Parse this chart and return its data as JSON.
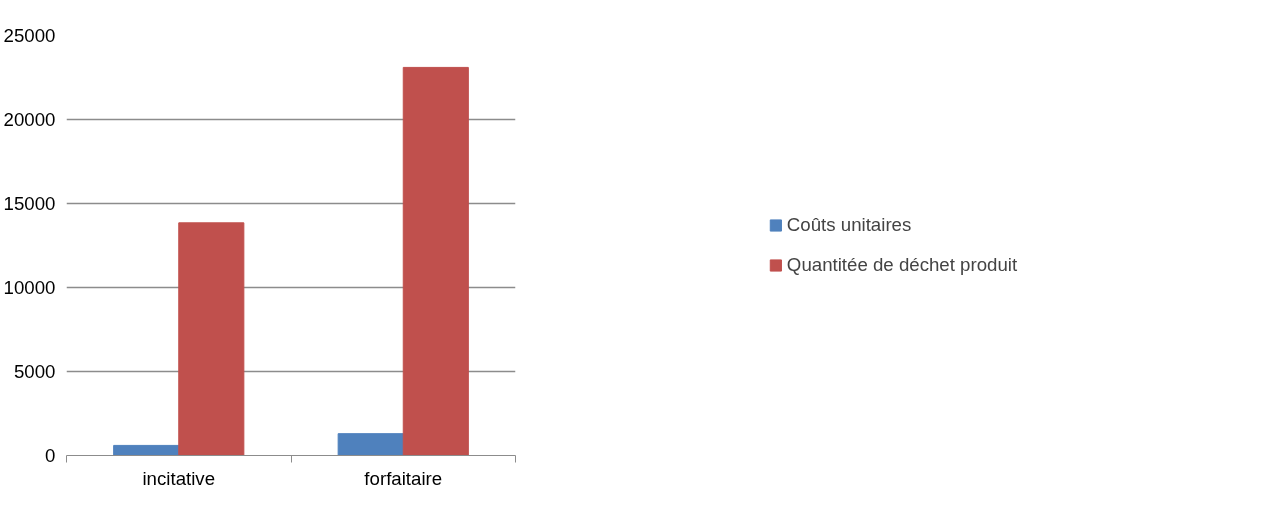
{
  "chart_data": {
    "type": "bar",
    "categories": [
      "incitative",
      "forfaitaire"
    ],
    "series": [
      {
        "name": "Coûts unitaires",
        "color": "#4f81bd",
        "values": [
          600,
          1300
        ]
      },
      {
        "name": "Quantitée de déchet produit",
        "color": "#c0504d",
        "values": [
          13850,
          23100
        ]
      }
    ],
    "ylim": [
      0,
      25000
    ],
    "yticks": [
      0,
      5000,
      10000,
      15000,
      20000,
      25000
    ],
    "grid": "y",
    "legend": "right"
  }
}
